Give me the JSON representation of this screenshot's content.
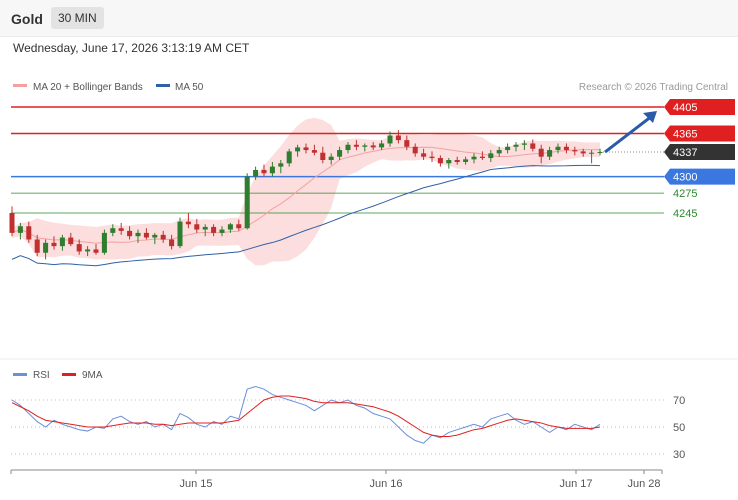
{
  "header": {
    "instrument": "Gold",
    "timeframe": "30 MIN"
  },
  "datetime": "Wednesday, June 17, 2026 3:13:19 AM CET",
  "credit": "Research © 2026 Trading Central",
  "legend": {
    "ma20_bb": "MA 20 + Bollinger Bands",
    "ma50": "MA 50"
  },
  "rsi_legend": {
    "rsi": "RSI",
    "ma9": "9MA"
  },
  "colors": {
    "resistance": "#e02020",
    "support": "#3a78e0",
    "minor_support": "#2a8a2a",
    "current": "#333333",
    "ma50": "#3060a8",
    "bollinger": "#f5a0a0",
    "candle_up": "#2f7d2f",
    "candle_down": "#c03030",
    "rsi": "#6b8fd8",
    "rsi_ma": "#e02020",
    "arrow": "#2a5aa8"
  },
  "chart_data": [
    {
      "type": "candlestick",
      "title": "Gold",
      "timeframe": "30 MIN",
      "ylim": [
        4050,
        4430
      ],
      "x_ticks": [
        "Jun 15",
        "Jun 16",
        "Jun 17",
        "Jun 28"
      ],
      "levels": [
        {
          "value": 4405,
          "label": "4405",
          "kind": "resistance"
        },
        {
          "value": 4365,
          "label": "4365",
          "kind": "resistance"
        },
        {
          "value": 4337,
          "label": "4337",
          "kind": "current"
        },
        {
          "value": 4300,
          "label": "4300",
          "kind": "support"
        },
        {
          "value": 4275,
          "label": "4275",
          "kind": "minor_support"
        },
        {
          "value": 4245,
          "label": "4245",
          "kind": "minor_support"
        }
      ],
      "series": [
        {
          "name": "MA 20 + Bollinger Bands"
        },
        {
          "name": "MA 50"
        }
      ],
      "candles": [
        [
          4245,
          4255,
          4210,
          4215
        ],
        [
          4215,
          4230,
          4205,
          4225
        ],
        [
          4225,
          4232,
          4200,
          4205
        ],
        [
          4205,
          4212,
          4180,
          4185
        ],
        [
          4185,
          4205,
          4175,
          4200
        ],
        [
          4200,
          4210,
          4190,
          4195
        ],
        [
          4195,
          4212,
          4188,
          4208
        ],
        [
          4208,
          4215,
          4195,
          4198
        ],
        [
          4198,
          4205,
          4182,
          4187
        ],
        [
          4187,
          4195,
          4180,
          4190
        ],
        [
          4190,
          4198,
          4182,
          4185
        ],
        [
          4185,
          4220,
          4182,
          4215
        ],
        [
          4215,
          4228,
          4210,
          4222
        ],
        [
          4222,
          4230,
          4212,
          4218
        ],
        [
          4218,
          4225,
          4205,
          4210
        ],
        [
          4210,
          4220,
          4200,
          4215
        ],
        [
          4215,
          4222,
          4205,
          4208
        ],
        [
          4208,
          4215,
          4198,
          4212
        ],
        [
          4212,
          4218,
          4200,
          4205
        ],
        [
          4205,
          4212,
          4190,
          4195
        ],
        [
          4195,
          4238,
          4192,
          4232
        ],
        [
          4232,
          4245,
          4222,
          4228
        ],
        [
          4228,
          4236,
          4215,
          4220
        ],
        [
          4220,
          4228,
          4210,
          4224
        ],
        [
          4224,
          4228,
          4210,
          4215
        ],
        [
          4215,
          4225,
          4210,
          4220
        ],
        [
          4220,
          4230,
          4215,
          4228
        ],
        [
          4228,
          4235,
          4218,
          4222
        ],
        [
          4222,
          4305,
          4220,
          4300
        ],
        [
          4300,
          4315,
          4295,
          4310
        ],
        [
          4310,
          4318,
          4300,
          4305
        ],
        [
          4305,
          4322,
          4300,
          4315
        ],
        [
          4315,
          4325,
          4305,
          4320
        ],
        [
          4320,
          4342,
          4315,
          4338
        ],
        [
          4338,
          4348,
          4330,
          4344
        ],
        [
          4344,
          4350,
          4335,
          4340
        ],
        [
          4340,
          4348,
          4332,
          4336
        ],
        [
          4336,
          4345,
          4320,
          4325
        ],
        [
          4325,
          4335,
          4318,
          4330
        ],
        [
          4330,
          4345,
          4325,
          4340
        ],
        [
          4340,
          4352,
          4335,
          4348
        ],
        [
          4348,
          4355,
          4340,
          4345
        ],
        [
          4345,
          4350,
          4338,
          4347
        ],
        [
          4347,
          4352,
          4340,
          4344
        ],
        [
          4344,
          4355,
          4340,
          4350
        ],
        [
          4350,
          4368,
          4345,
          4362
        ],
        [
          4362,
          4370,
          4350,
          4355
        ],
        [
          4355,
          4362,
          4340,
          4345
        ],
        [
          4345,
          4350,
          4330,
          4335
        ],
        [
          4335,
          4342,
          4325,
          4330
        ],
        [
          4330,
          4338,
          4322,
          4328
        ],
        [
          4328,
          4332,
          4315,
          4320
        ],
        [
          4320,
          4328,
          4312,
          4325
        ],
        [
          4325,
          4330,
          4318,
          4322
        ],
        [
          4322,
          4330,
          4318,
          4326
        ],
        [
          4326,
          4335,
          4320,
          4330
        ],
        [
          4330,
          4338,
          4325,
          4328
        ],
        [
          4328,
          4340,
          4322,
          4335
        ],
        [
          4335,
          4345,
          4330,
          4340
        ],
        [
          4340,
          4350,
          4335,
          4345
        ],
        [
          4345,
          4352,
          4338,
          4348
        ],
        [
          4348,
          4355,
          4340,
          4350
        ],
        [
          4350,
          4356,
          4338,
          4342
        ],
        [
          4342,
          4348,
          4320,
          4330
        ],
        [
          4330,
          4345,
          4325,
          4340
        ],
        [
          4340,
          4350,
          4335,
          4345
        ],
        [
          4345,
          4350,
          4335,
          4340
        ],
        [
          4340,
          4345,
          4332,
          4338
        ],
        [
          4338,
          4342,
          4330,
          4335
        ],
        [
          4335,
          4340,
          4320,
          4336
        ],
        [
          4336,
          4342,
          4332,
          4337
        ]
      ]
    },
    {
      "type": "line",
      "title": "RSI",
      "ylim": [
        20,
        90
      ],
      "y_ticks": [
        30,
        50,
        70
      ],
      "series": [
        {
          "name": "RSI",
          "values": [
            70,
            66,
            60,
            54,
            50,
            55,
            52,
            50,
            48,
            47,
            50,
            49,
            56,
            58,
            54,
            52,
            54,
            50,
            52,
            48,
            60,
            57,
            52,
            50,
            54,
            52,
            58,
            56,
            78,
            80,
            78,
            74,
            72,
            70,
            68,
            66,
            62,
            66,
            70,
            68,
            70,
            66,
            64,
            60,
            58,
            56,
            50,
            44,
            40,
            38,
            44,
            42,
            46,
            48,
            50,
            52,
            50,
            56,
            58,
            60,
            55,
            52,
            54,
            50,
            46,
            50,
            48,
            52,
            50,
            48,
            52
          ]
        },
        {
          "name": "9MA",
          "values": [
            68,
            65,
            62,
            58,
            55,
            54,
            53,
            52,
            51,
            50,
            50,
            50,
            51,
            52,
            53,
            53,
            53,
            52,
            52,
            51,
            52,
            53,
            53,
            53,
            53,
            53,
            54,
            55,
            60,
            65,
            70,
            72,
            73,
            73,
            72,
            71,
            69,
            68,
            68,
            68,
            68,
            67,
            66,
            65,
            63,
            61,
            58,
            54,
            50,
            46,
            44,
            43,
            43,
            44,
            46,
            48,
            49,
            51,
            53,
            55,
            56,
            55,
            54,
            53,
            51,
            50,
            49,
            49,
            49,
            49,
            50
          ]
        }
      ]
    }
  ]
}
